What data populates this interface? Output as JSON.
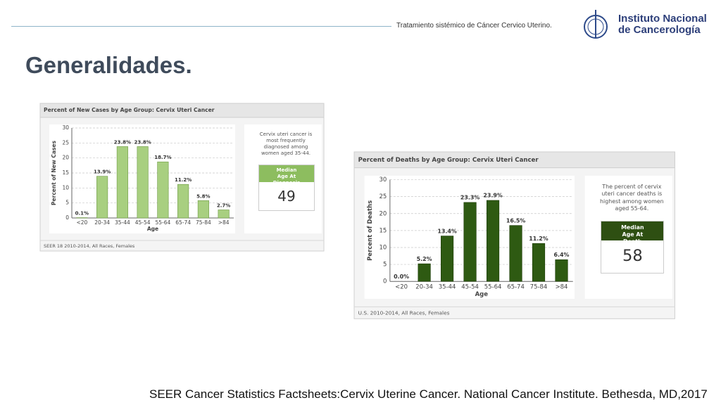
{
  "slide": {
    "header": "Tratamiento sistémico de Cáncer Cervico Uterino.",
    "logo_lines": [
      "Instituto Nacional",
      "de Cancerología"
    ],
    "title": "Generalidades.",
    "citation": "SEER Cancer Statistics Factsheets:Cervix Uterine Cancer. National Cancer Institute. Bethesda, MD,2017"
  },
  "chart_data": [
    {
      "type": "bar",
      "title": "Percent of New Cases by Age Group: Cervix Uteri Cancer",
      "x_label": "Age",
      "y_label": "Percent of New Cases",
      "categories": [
        "<20",
        "20-34",
        "35-44",
        "45-54",
        "55-64",
        "65-74",
        "75-84",
        ">84"
      ],
      "values": [
        0.1,
        13.9,
        23.8,
        23.8,
        18.7,
        11.2,
        5.8,
        2.7
      ],
      "value_labels": [
        "0.1%",
        "13.9%",
        "23.8%",
        "23.8%",
        "18.7%",
        "11.2%",
        "5.8%",
        "2.7%"
      ],
      "color": "#a8cf80",
      "ylim": [
        0,
        30
      ],
      "yticks": [
        0,
        5,
        10,
        15,
        20,
        25,
        30
      ],
      "grid": true,
      "note": "Cervix uteri cancer is most frequently diagnosed among women aged 35-44.",
      "median_label": "Median Age At Diagnosis",
      "median_value": 49,
      "source": "SEER 18 2010-2014, All Races, Females"
    },
    {
      "type": "bar",
      "title": "Percent of Deaths by Age Group: Cervix Uteri Cancer",
      "x_label": "Age",
      "y_label": "Percent of Deaths",
      "categories": [
        "<20",
        "20-34",
        "35-44",
        "45-54",
        "55-64",
        "65-74",
        "75-84",
        ">84"
      ],
      "values": [
        0.0,
        5.2,
        13.4,
        23.3,
        23.9,
        16.5,
        11.2,
        6.4
      ],
      "value_labels": [
        "0.0%",
        "5.2%",
        "13.4%",
        "23.3%",
        "23.9%",
        "16.5%",
        "11.2%",
        "6.4%"
      ],
      "color": "#2e5a12",
      "ylim": [
        0,
        30
      ],
      "yticks": [
        0,
        5,
        10,
        15,
        20,
        25,
        30
      ],
      "grid": true,
      "note": "The percent of cervix uteri cancer deaths is highest among women aged 55-64.",
      "median_label": "Median Age At Death",
      "median_value": 58,
      "source": "U.S. 2010-2014, All Races, Females"
    }
  ]
}
